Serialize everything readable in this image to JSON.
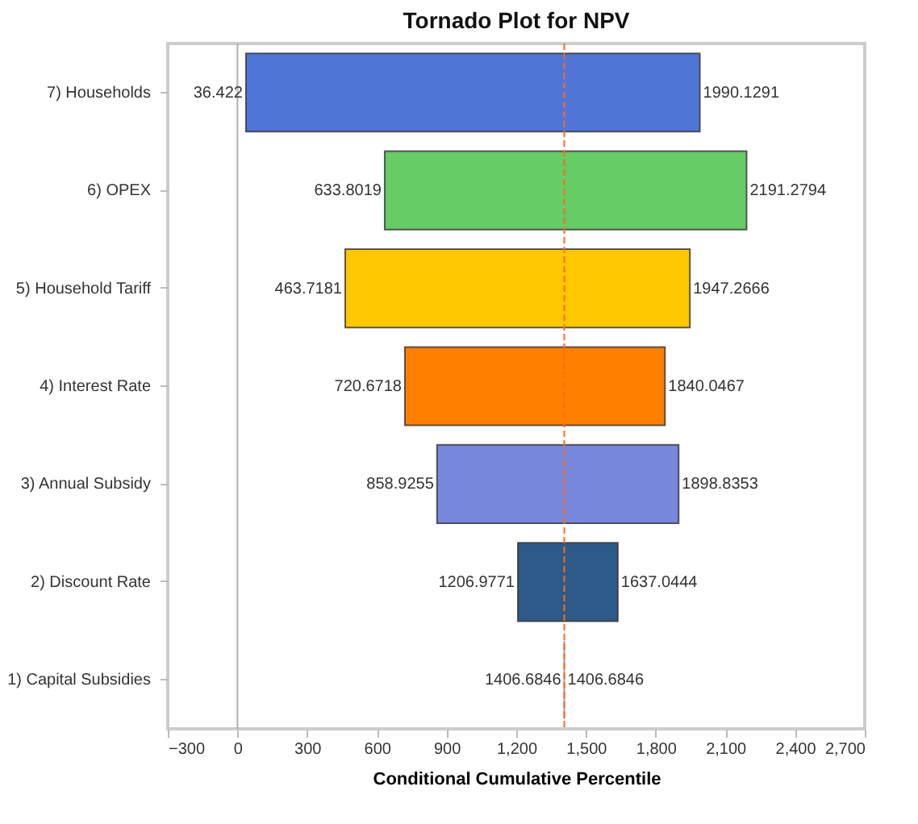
{
  "chart_data": {
    "type": "bar",
    "orientation": "horizontal",
    "title": "Tornado Plot for NPV",
    "xlabel": "Conditional Cumulative Percentile",
    "categories": [
      "7) Households",
      "6) OPEX",
      "5) Household Tariff",
      "4) Interest Rate",
      "3) Annual Subsidy",
      "2) Discount Rate",
      "1) Capital Subsidies"
    ],
    "base": [
      36.422,
      633.8019,
      463.7181,
      720.6718,
      858.9255,
      1206.9771,
      1406.6846
    ],
    "values": [
      1953.7071,
      1557.4775,
      1483.5485,
      1119.3749,
      1039.9098,
      430.0673,
      0
    ],
    "colors": [
      "#4f76d6",
      "#66cc66",
      "#ffc800",
      "#ff7f00",
      "#7788dd",
      "#2e5a8a",
      "#888888"
    ],
    "xlim": [
      -300,
      2700
    ],
    "xticks": [
      -300,
      0,
      300,
      600,
      900,
      {
        "value": 1200,
        "label": "1,200"
      },
      {
        "value": 1500,
        "label": "1,500"
      },
      {
        "value": 1800,
        "label": "1,800"
      },
      {
        "value": 2100,
        "label": "2,100"
      },
      {
        "value": 2400,
        "label": "2,400"
      },
      {
        "value": 2700,
        "label": "2,700"
      }
    ],
    "ref_lines": [
      {
        "axis": "x",
        "value": 1406.6846,
        "color": "#ff6a1a",
        "line_style": "dashed"
      },
      {
        "axis": "x",
        "value": 0,
        "color": "#b0b0b0",
        "line_style": "solid"
      }
    ],
    "annotations": [
      {
        "text": "36.422",
        "x": 36.422,
        "y": "7) Households"
      },
      {
        "text": "1990.1291",
        "x": 1990.1291,
        "y": "7) Households"
      },
      {
        "text": "633.8019",
        "x": 633.8019,
        "y": "6) OPEX"
      },
      {
        "text": "2191.2794",
        "x": 2191.2794,
        "y": "6) OPEX"
      },
      {
        "text": "463.7181",
        "x": 463.7181,
        "y": "5) Household Tariff"
      },
      {
        "text": "1947.2666",
        "x": 1947.2666,
        "y": "5) Household Tariff"
      },
      {
        "text": "720.6718",
        "x": 720.6718,
        "y": "4) Interest Rate"
      },
      {
        "text": "1840.0467",
        "x": 1840.0467,
        "y": "4) Interest Rate"
      },
      {
        "text": "858.9255",
        "x": 858.9255,
        "y": "3) Annual Subsidy"
      },
      {
        "text": "1898.8353",
        "x": 1898.8353,
        "y": "3) Annual Subsidy"
      },
      {
        "text": "1206.9771",
        "x": 1206.9771,
        "y": "2) Discount Rate"
      },
      {
        "text": "1637.0444",
        "x": 1637.0444,
        "y": "2) Discount Rate"
      },
      {
        "text": "1406.6846",
        "x": 1406.6846,
        "y": "1) Capital Subsidies"
      },
      {
        "text": "1406.6846",
        "x": 1406.6846,
        "y": "1) Capital Subsidies"
      }
    ],
    "grid": false,
    "legend": false
  }
}
